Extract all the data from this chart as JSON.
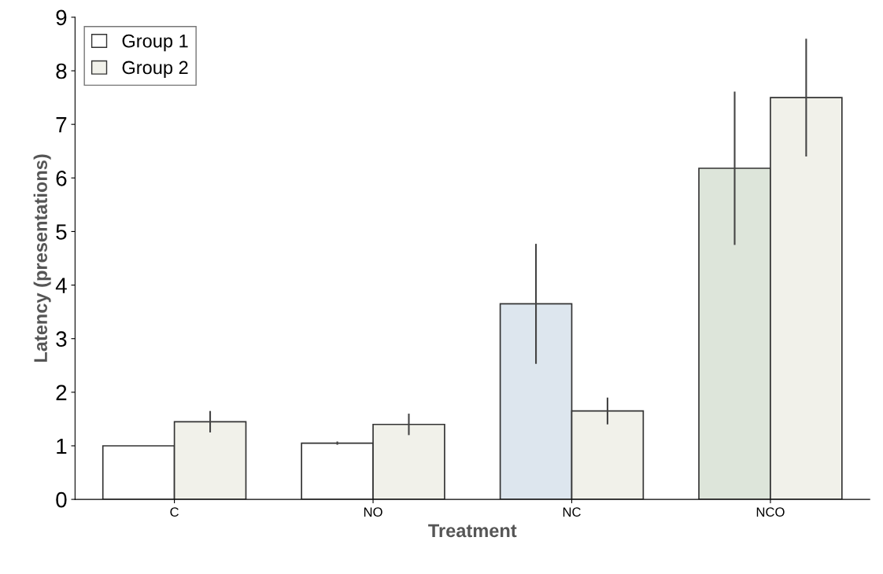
{
  "chart_data": {
    "type": "bar",
    "xlabel": "Treatment",
    "ylabel": "Latency (presentations)",
    "categories": [
      "C",
      "NO",
      "NC",
      "NCO"
    ],
    "series": [
      {
        "name": "Group 1",
        "color": "#ffffff",
        "colors": [
          "#ffffff",
          "#ffffff",
          "#dde6ee",
          "#dde5da"
        ],
        "values": [
          1.0,
          1.05,
          3.65,
          6.18
        ],
        "errors": [
          null,
          0.03,
          1.12,
          1.43
        ]
      },
      {
        "name": "Group 2",
        "color": "#f1f1ea",
        "values": [
          1.45,
          1.4,
          1.65,
          7.5
        ],
        "errors": [
          0.2,
          0.2,
          0.25,
          1.1
        ]
      }
    ],
    "ylim": [
      0,
      9
    ],
    "yticks": [
      0,
      1,
      2,
      3,
      4,
      5,
      6,
      7,
      8,
      9
    ],
    "legend": "top left",
    "grid": false
  }
}
